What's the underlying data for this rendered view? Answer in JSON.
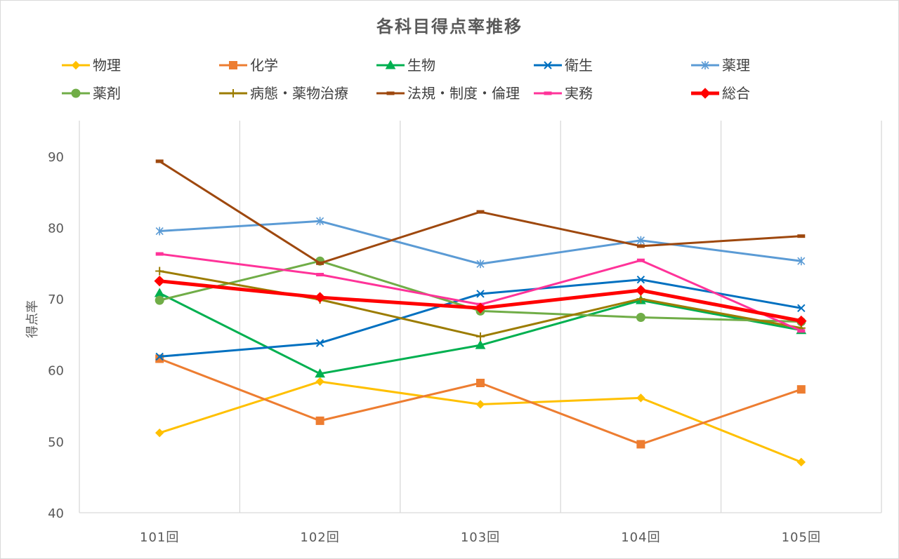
{
  "chart_data": {
    "type": "line",
    "title": "各科目得点率推移",
    "xlabel": "",
    "ylabel": "得点率",
    "ylim": [
      40,
      95
    ],
    "yticks": [
      40,
      50,
      60,
      70,
      80,
      90
    ],
    "grid": "vertical",
    "legend_position": "top",
    "categories": [
      "101回",
      "102回",
      "103回",
      "104回",
      "105回"
    ],
    "series": [
      {
        "name": "物理",
        "values": [
          51.2,
          58.4,
          55.2,
          56.1,
          47.1
        ],
        "color": "#FFC000",
        "marker": "diamond",
        "width": 3
      },
      {
        "name": "化学",
        "values": [
          61.6,
          52.9,
          58.2,
          49.6,
          57.3
        ],
        "color": "#ED7D31",
        "marker": "square",
        "width": 3
      },
      {
        "name": "生物",
        "values": [
          70.8,
          59.5,
          63.5,
          69.8,
          65.6
        ],
        "color": "#00B050",
        "marker": "triangle",
        "width": 3
      },
      {
        "name": "衛生",
        "values": [
          61.9,
          63.8,
          70.7,
          72.7,
          68.7
        ],
        "color": "#0070C0",
        "marker": "x",
        "width": 3
      },
      {
        "name": "薬理",
        "values": [
          79.5,
          80.9,
          74.9,
          78.2,
          75.3
        ],
        "color": "#5B9BD5",
        "marker": "asterisk",
        "width": 3
      },
      {
        "name": "薬剤",
        "values": [
          69.8,
          75.3,
          68.3,
          67.4,
          66.8
        ],
        "color": "#70AD47",
        "marker": "circle",
        "width": 3
      },
      {
        "name": "病態・薬物治療",
        "values": [
          73.9,
          69.9,
          64.7,
          70.0,
          65.9
        ],
        "color": "#9C7C00",
        "marker": "plus",
        "width": 3
      },
      {
        "name": "法規・制度・倫理",
        "values": [
          89.3,
          75.0,
          82.2,
          77.4,
          78.8
        ],
        "color": "#9E480E",
        "marker": "dash",
        "width": 3
      },
      {
        "name": "実務",
        "values": [
          76.3,
          73.4,
          69.2,
          75.4,
          65.5
        ],
        "color": "#FF3399",
        "marker": "dash",
        "width": 3
      },
      {
        "name": "総合",
        "values": [
          72.5,
          70.2,
          68.7,
          71.2,
          66.9
        ],
        "color": "#FF0000",
        "marker": "diamond",
        "width": 5
      }
    ]
  }
}
